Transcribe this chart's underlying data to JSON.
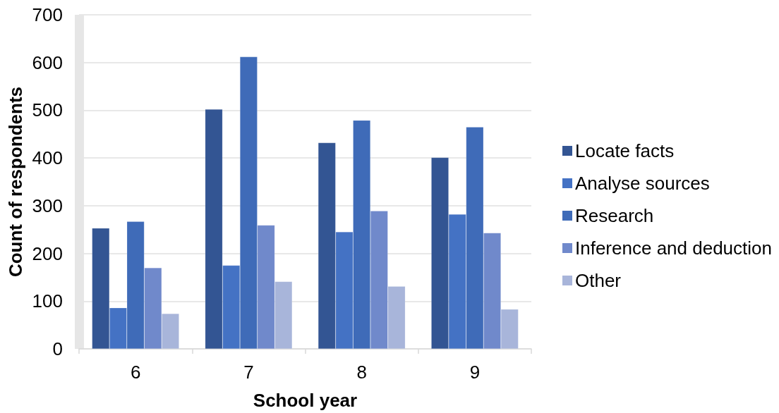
{
  "chart_data": {
    "type": "bar",
    "xlabel": "School year",
    "ylabel": "Count of respondents",
    "categories": [
      "6",
      "7",
      "8",
      "9"
    ],
    "series": [
      {
        "name": "Locate facts",
        "color": "#335593",
        "values": [
          253,
          502,
          432,
          401
        ]
      },
      {
        "name": "Analyse sources",
        "color": "#4472c4",
        "values": [
          86,
          175,
          245,
          282
        ]
      },
      {
        "name": "Research",
        "color": "#3f6bb8",
        "values": [
          267,
          612,
          479,
          465
        ]
      },
      {
        "name": "Inference and deduction",
        "color": "#7089cb",
        "values": [
          170,
          259,
          289,
          243
        ]
      },
      {
        "name": "Other",
        "color": "#a8b5da",
        "values": [
          74,
          141,
          131,
          83
        ]
      }
    ],
    "ylim": [
      0,
      700
    ],
    "yticks": [
      0,
      100,
      200,
      300,
      400,
      500,
      600,
      700
    ],
    "grid": "y",
    "legend": "right"
  }
}
